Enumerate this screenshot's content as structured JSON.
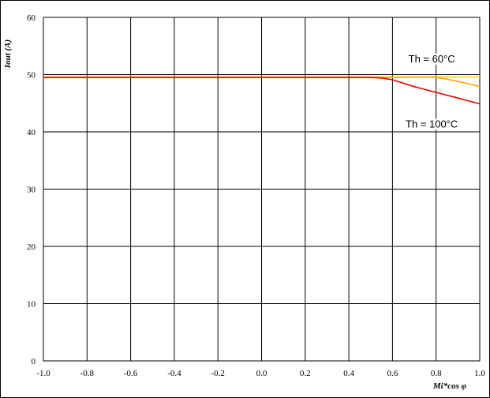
{
  "chart_data": {
    "type": "line",
    "title": "",
    "xlabel": "Mi*cos φ",
    "ylabel": "Iout (A)",
    "xlim": [
      -1.0,
      1.0
    ],
    "ylim": [
      0,
      60
    ],
    "grid": true,
    "x_ticks": [
      "-1.0",
      "-0.8",
      "-0.6",
      "-0.4",
      "-0.2",
      "0.0",
      "0.2",
      "0.4",
      "0.6",
      "0.8",
      "1.0"
    ],
    "y_ticks": [
      "0",
      "10",
      "20",
      "30",
      "40",
      "50",
      "60"
    ],
    "series": [
      {
        "name": "Th = 60°C",
        "color": "#ffd700",
        "x": [
          -1.0,
          0.5,
          0.6,
          0.7,
          0.8,
          0.9,
          1.0
        ],
        "y": [
          49.6,
          49.6,
          49.6,
          49.6,
          49.6,
          49.6,
          49.6
        ]
      },
      {
        "name": "",
        "color": "#ffa500",
        "x": [
          -1.0,
          0.5,
          0.6,
          0.65,
          0.7,
          0.75,
          0.8,
          0.85,
          0.9,
          0.95,
          1.0
        ],
        "y": [
          49.5,
          49.5,
          49.5,
          49.55,
          49.6,
          49.6,
          49.5,
          49.2,
          48.8,
          48.4,
          47.9
        ]
      },
      {
        "name": "Th = 100°C",
        "color": "#e00000",
        "x": [
          -1.0,
          0.5,
          0.55,
          0.6,
          0.65,
          0.7,
          0.75,
          0.8,
          0.85,
          0.9,
          0.95,
          1.0
        ],
        "y": [
          49.5,
          49.5,
          49.4,
          49.1,
          48.5,
          47.9,
          47.4,
          46.9,
          46.4,
          45.9,
          45.4,
          44.9
        ]
      }
    ],
    "annotations": [
      {
        "text": "Th = 60°C",
        "x": 0.78,
        "y": 52.3
      },
      {
        "text": "Th = 100°C",
        "x": 0.78,
        "y": 40.9
      }
    ]
  }
}
